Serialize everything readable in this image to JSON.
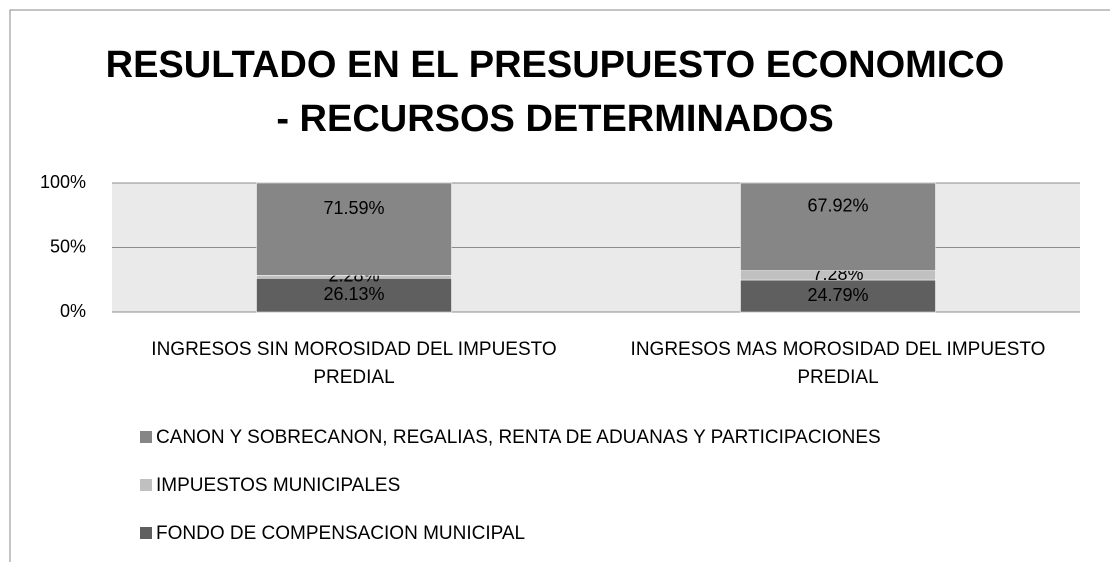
{
  "chart_data": {
    "type": "stacked_bar_100",
    "title": "RESULTADO EN EL PRESUPUESTO ECONOMICO - RECURSOS DETERMINADOS",
    "categories": [
      "INGRESOS SIN MOROSIDAD DEL IMPUESTO PREDIAL",
      "INGRESOS MAS MOROSIDAD DEL IMPUESTO PREDIAL"
    ],
    "series": [
      {
        "name": "FONDO DE COMPENSACION MUNICIPAL",
        "color": "#5f5f5f",
        "values": [
          26.13,
          24.79
        ],
        "value_labels": [
          "26.13%",
          "24.79%"
        ]
      },
      {
        "name": "IMPUESTOS MUNICIPALES",
        "color": "#c0c0c0",
        "values": [
          2.28,
          7.28
        ],
        "value_labels": [
          "2.28%",
          "7.28%"
        ]
      },
      {
        "name": "CANON Y SOBRECANON, REGALIAS, RENTA DE ADUANAS Y PARTICIPACIONES",
        "color": "#868686",
        "values": [
          71.59,
          67.92
        ],
        "value_labels": [
          "71.59%",
          "67.92%"
        ]
      }
    ],
    "ylim": [
      0,
      100
    ],
    "yticks": [
      {
        "value": 0,
        "label": "0%"
      },
      {
        "value": 50,
        "label": "50%"
      },
      {
        "value": 100,
        "label": "100%"
      }
    ],
    "grid": true,
    "legend": "bottom"
  }
}
